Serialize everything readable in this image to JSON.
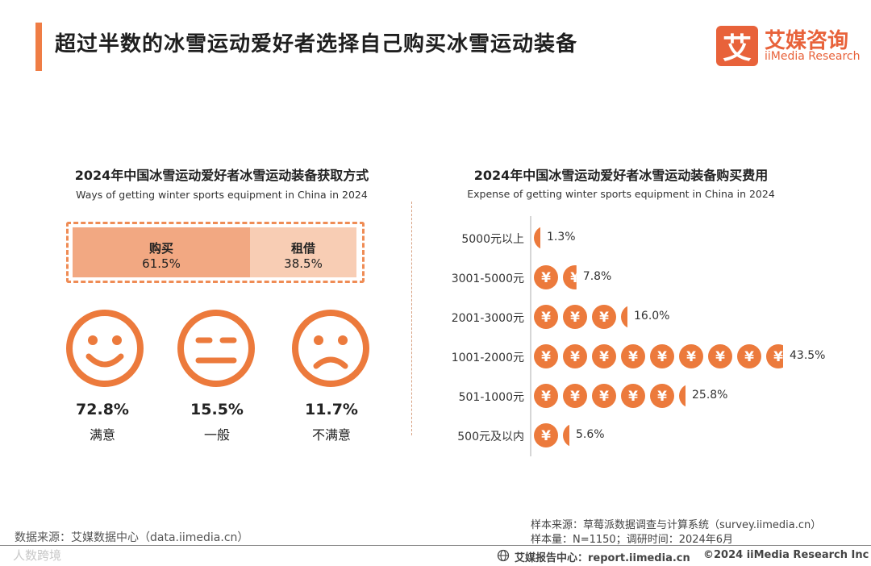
{
  "header": {
    "title": "超过半数的冰雪运动爱好者选择自己购买冰雪运动装备",
    "logo_mark": "艾",
    "logo_cn": "艾媒咨询",
    "logo_en": "iiMedia Research"
  },
  "colors": {
    "accent": "#ef7d45",
    "buy": "#f2a882",
    "rent": "#f8cdb4",
    "coin": "#ec7a3c",
    "logo": "#e8623a"
  },
  "chart_data": [
    {
      "type": "stacked-bar",
      "title": "2024年中国冰雪运动爱好者冰雪运动装备获取方式",
      "subtitle": "Ways of getting winter sports equipment in China in 2024",
      "segments": [
        {
          "name": "购买",
          "value": 61.5,
          "label": "61.5%"
        },
        {
          "name": "租借",
          "value": 38.5,
          "label": "38.5%"
        }
      ],
      "satisfaction": [
        {
          "label": "满意",
          "value": 72.8,
          "value_label": "72.8%",
          "icon": "smile-face-icon"
        },
        {
          "label": "一般",
          "value": 15.5,
          "value_label": "15.5%",
          "icon": "neutral-face-icon"
        },
        {
          "label": "不满意",
          "value": 11.7,
          "value_label": "11.7%",
          "icon": "sad-face-icon"
        }
      ]
    },
    {
      "type": "bar",
      "orientation": "horizontal",
      "title": "2024年中国冰雪运动爱好者冰雪运动装备购买费用",
      "subtitle": "Expense of getting winter sports equipment in China in 2024",
      "icon": "yuan-coin-icon",
      "unit_per_icon": 5,
      "categories": [
        "5000元以上",
        "3001-5000元",
        "2001-3000元",
        "1001-2000元",
        "501-1000元",
        "500元及以内"
      ],
      "values": [
        1.3,
        7.8,
        16.0,
        43.5,
        25.8,
        5.6
      ],
      "value_labels": [
        "1.3%",
        "7.8%",
        "16.0%",
        "43.5%",
        "25.8%",
        "5.6%"
      ]
    }
  ],
  "footer": {
    "source_left": "数据来源：艾媒数据中心（data.iimedia.cn）",
    "watermark": "人数跨境",
    "sample_source": "样本来源：草莓派数据调查与计算系统（survey.iimedia.cn）",
    "sample_size": "样本量：N=1150；调研时间：2024年6月",
    "report_center": "艾媒报告中心：report.iimedia.cn",
    "copyright": "©2024  iiMedia Research  Inc"
  }
}
